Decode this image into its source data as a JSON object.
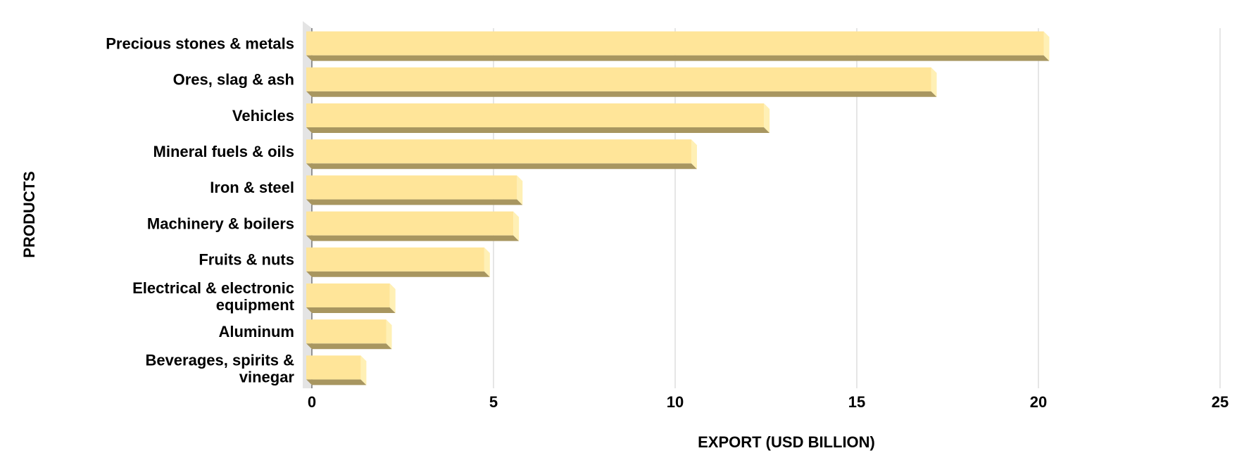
{
  "chart_data": {
    "type": "bar3d_horizontal",
    "x_label": "EXPORT (USD BILLION)",
    "y_label": "PRODUCTS",
    "categories": [
      "Precious stones & metals",
      "Ores, slag & ash",
      "Vehicles",
      "Mineral fuels & oils",
      "Iron & steel",
      "Machinery & boilers",
      "Fruits & nuts",
      "Electrical & electronic equipment",
      "Aluminum",
      "Beverages, spirits & vinegar"
    ],
    "values": [
      20.3,
      17.2,
      12.6,
      10.6,
      5.8,
      5.7,
      4.9,
      2.3,
      2.2,
      1.5
    ],
    "color": "#ffe599",
    "xlim": [
      0,
      25
    ],
    "xticks": [
      0,
      5,
      10,
      15,
      20,
      25
    ],
    "grid": true
  }
}
